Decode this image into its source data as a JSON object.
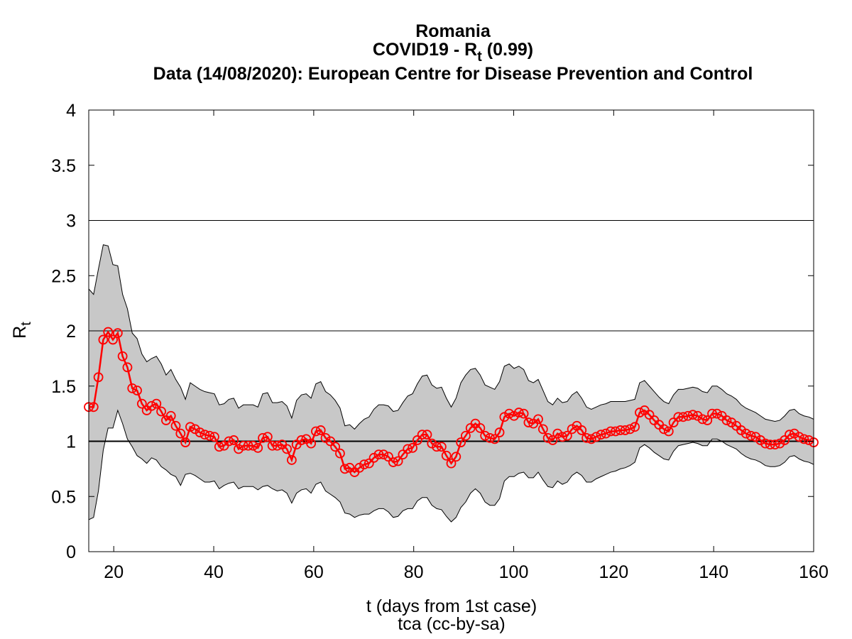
{
  "chart_data": {
    "type": "line",
    "title": {
      "line1": "Romania",
      "line2_prefix": "COVID19 - R",
      "line2_sub": "t",
      "line2_suffix": " (0.99)",
      "line3": "Data (14/08/2020): European Centre for Disease Prevention and Control"
    },
    "xlabel": "t (days from 1st case)",
    "credit": "tca (cc-by-sa)",
    "ylabel_main": "R",
    "ylabel_sub": "t",
    "xlim": [
      15,
      160
    ],
    "ylim": [
      0,
      4
    ],
    "xticks": [
      20,
      40,
      60,
      80,
      100,
      120,
      140,
      160
    ],
    "yticks": [
      0,
      0.5,
      1,
      1.5,
      2,
      2.5,
      3,
      3.5,
      4
    ],
    "ytick_labels": [
      "0",
      "0.5",
      "1",
      "1.5",
      "2",
      "2.5",
      "3",
      "3.5",
      "4"
    ],
    "reference_lines": [
      1,
      2,
      3
    ],
    "colors": {
      "series": "#ff0000",
      "band": "#c8c8c8",
      "band_edge": "#000000"
    },
    "series": [
      {
        "x_start": 15,
        "x_end": 160,
        "values": [
          1.31,
          1.31,
          1.58,
          1.92,
          1.99,
          1.92,
          1.98,
          1.77,
          1.67,
          1.48,
          1.46,
          1.34,
          1.28,
          1.32,
          1.34,
          1.27,
          1.19,
          1.23,
          1.14,
          1.07,
          0.99,
          1.13,
          1.11,
          1.08,
          1.06,
          1.05,
          1.04,
          0.95,
          0.96,
          1.0,
          1.01,
          0.93,
          0.96,
          0.96,
          0.96,
          0.94,
          1.03,
          1.04,
          0.96,
          0.96,
          0.97,
          0.93,
          0.83,
          0.97,
          1.01,
          1.02,
          0.98,
          1.09,
          1.1,
          1.03,
          1.0,
          0.95,
          0.89,
          0.75,
          0.76,
          0.72,
          0.76,
          0.79,
          0.8,
          0.85,
          0.88,
          0.88,
          0.86,
          0.81,
          0.82,
          0.88,
          0.93,
          0.94,
          1.01,
          1.06,
          1.06,
          0.98,
          0.95,
          0.95,
          0.87,
          0.8,
          0.86,
          0.99,
          1.05,
          1.12,
          1.16,
          1.12,
          1.05,
          1.03,
          1.02,
          1.08,
          1.22,
          1.25,
          1.23,
          1.26,
          1.25,
          1.17,
          1.16,
          1.2,
          1.11,
          1.03,
          1.01,
          1.07,
          1.04,
          1.05,
          1.11,
          1.14,
          1.1,
          1.03,
          1.02,
          1.04,
          1.06,
          1.07,
          1.09,
          1.09,
          1.1,
          1.1,
          1.11,
          1.13,
          1.26,
          1.28,
          1.24,
          1.19,
          1.15,
          1.11,
          1.09,
          1.17,
          1.22,
          1.22,
          1.23,
          1.24,
          1.23,
          1.2,
          1.19,
          1.25,
          1.25,
          1.23,
          1.19,
          1.17,
          1.14,
          1.1,
          1.07,
          1.05,
          1.04,
          1.01,
          0.98,
          0.97,
          0.97,
          0.98,
          1.01,
          1.06,
          1.07,
          1.04,
          1.02,
          1.01,
          0.99
        ],
        "lower": [
          0.29,
          0.31,
          0.55,
          0.92,
          1.12,
          1.12,
          1.28,
          1.16,
          1.02,
          0.95,
          0.87,
          0.84,
          0.8,
          0.85,
          0.83,
          0.77,
          0.74,
          0.7,
          0.68,
          0.6,
          0.7,
          0.71,
          0.69,
          0.66,
          0.63,
          0.63,
          0.64,
          0.57,
          0.6,
          0.62,
          0.63,
          0.57,
          0.59,
          0.59,
          0.59,
          0.56,
          0.59,
          0.6,
          0.57,
          0.55,
          0.56,
          0.53,
          0.44,
          0.53,
          0.56,
          0.57,
          0.53,
          0.61,
          0.63,
          0.55,
          0.52,
          0.49,
          0.45,
          0.35,
          0.34,
          0.31,
          0.33,
          0.34,
          0.34,
          0.37,
          0.39,
          0.39,
          0.36,
          0.31,
          0.32,
          0.37,
          0.39,
          0.39,
          0.46,
          0.49,
          0.49,
          0.42,
          0.39,
          0.38,
          0.32,
          0.27,
          0.31,
          0.4,
          0.45,
          0.53,
          0.57,
          0.53,
          0.45,
          0.42,
          0.42,
          0.48,
          0.64,
          0.68,
          0.68,
          0.71,
          0.72,
          0.67,
          0.67,
          0.72,
          0.65,
          0.59,
          0.58,
          0.64,
          0.61,
          0.63,
          0.69,
          0.72,
          0.69,
          0.63,
          0.63,
          0.66,
          0.68,
          0.7,
          0.72,
          0.73,
          0.75,
          0.76,
          0.78,
          0.81,
          0.94,
          0.97,
          0.94,
          0.9,
          0.87,
          0.84,
          0.83,
          0.91,
          0.96,
          0.97,
          0.98,
          0.99,
          0.98,
          0.96,
          0.96,
          1.02,
          1.02,
          1.0,
          0.97,
          0.95,
          0.93,
          0.89,
          0.86,
          0.84,
          0.83,
          0.81,
          0.78,
          0.77,
          0.77,
          0.78,
          0.81,
          0.86,
          0.87,
          0.84,
          0.82,
          0.81,
          0.79
        ],
        "upper": [
          2.38,
          2.33,
          2.56,
          2.78,
          2.77,
          2.6,
          2.59,
          2.33,
          2.2,
          1.98,
          1.93,
          1.79,
          1.72,
          1.75,
          1.77,
          1.7,
          1.6,
          1.65,
          1.56,
          1.49,
          1.38,
          1.53,
          1.5,
          1.47,
          1.45,
          1.44,
          1.43,
          1.33,
          1.34,
          1.38,
          1.39,
          1.3,
          1.33,
          1.33,
          1.33,
          1.31,
          1.43,
          1.44,
          1.35,
          1.35,
          1.36,
          1.32,
          1.21,
          1.37,
          1.42,
          1.43,
          1.39,
          1.52,
          1.54,
          1.45,
          1.42,
          1.37,
          1.3,
          1.14,
          1.15,
          1.11,
          1.16,
          1.2,
          1.22,
          1.29,
          1.33,
          1.33,
          1.32,
          1.27,
          1.28,
          1.35,
          1.41,
          1.43,
          1.52,
          1.59,
          1.6,
          1.51,
          1.48,
          1.49,
          1.39,
          1.31,
          1.39,
          1.53,
          1.6,
          1.65,
          1.66,
          1.6,
          1.51,
          1.49,
          1.47,
          1.54,
          1.68,
          1.7,
          1.66,
          1.68,
          1.65,
          1.55,
          1.53,
          1.56,
          1.46,
          1.36,
          1.33,
          1.39,
          1.35,
          1.36,
          1.42,
          1.45,
          1.39,
          1.31,
          1.29,
          1.31,
          1.33,
          1.34,
          1.36,
          1.36,
          1.36,
          1.36,
          1.37,
          1.38,
          1.53,
          1.55,
          1.5,
          1.45,
          1.4,
          1.36,
          1.34,
          1.42,
          1.47,
          1.47,
          1.48,
          1.49,
          1.48,
          1.45,
          1.44,
          1.5,
          1.5,
          1.47,
          1.43,
          1.41,
          1.38,
          1.33,
          1.3,
          1.28,
          1.26,
          1.23,
          1.2,
          1.19,
          1.18,
          1.19,
          1.23,
          1.28,
          1.29,
          1.25,
          1.23,
          1.22,
          1.2
        ]
      }
    ]
  }
}
